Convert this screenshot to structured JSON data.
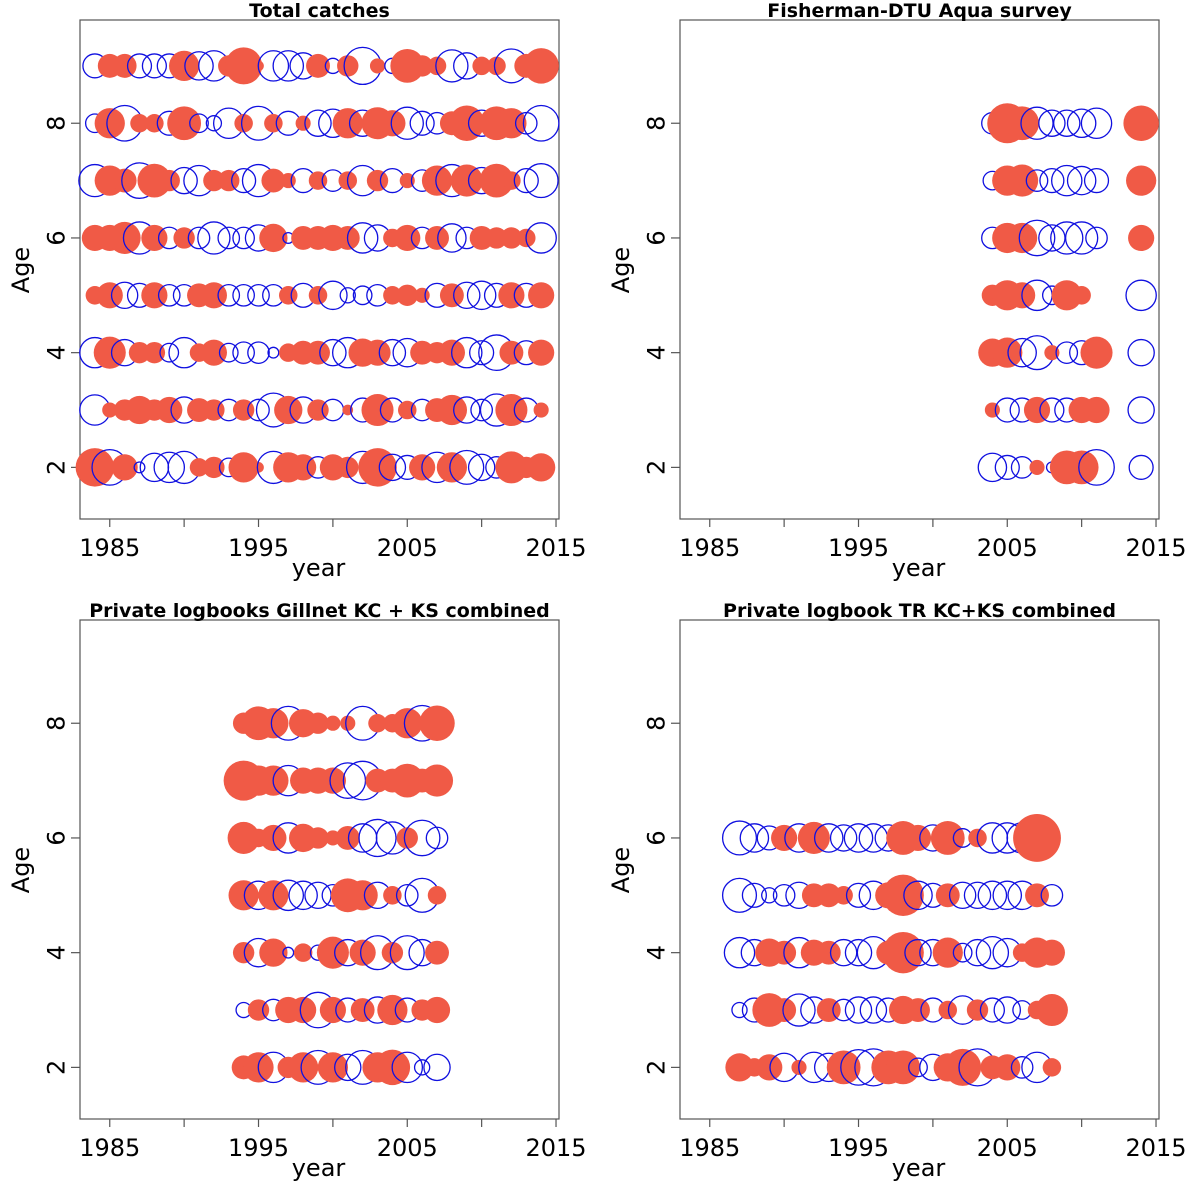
{
  "colors": {
    "positive_fill": "#f05a46",
    "negative_stroke": "#1010e0",
    "frame": "#555555"
  },
  "chart_data": [
    {
      "type": "scatter",
      "subtype": "bubble-residuals",
      "title": "Total catches",
      "xlabel": "year",
      "ylabel": "Age",
      "xlim": [
        1983,
        2015.2
      ],
      "ylim": [
        1.1,
        9.8
      ],
      "xticks": [
        1985,
        1995,
        2005,
        2015
      ],
      "yticks": [
        2,
        4,
        6,
        8
      ],
      "years": [
        1984,
        1985,
        1986,
        1987,
        1988,
        1989,
        1990,
        1991,
        1992,
        1993,
        1994,
        1995,
        1996,
        1997,
        1998,
        1999,
        2000,
        2001,
        2002,
        2003,
        2004,
        2005,
        2006,
        2007,
        2008,
        2009,
        2010,
        2011,
        2012,
        2013,
        2014
      ],
      "rows": [
        {
          "age": 9,
          "res": [
            -0.5,
            0.5,
            0.5,
            -0.5,
            -0.5,
            -0.5,
            0.8,
            -0.7,
            -0.8,
            0.4,
            1.2,
            0.1,
            -0.8,
            -0.8,
            -0.6,
            0.5,
            -0.2,
            0.4,
            -1.2,
            0.2,
            -0.2,
            1.0,
            0.4,
            0.3,
            -0.9,
            -0.6,
            0.3,
            0.3,
            -1.0,
            0.5,
            1.1
          ]
        },
        {
          "age": 8,
          "res": [
            -0.3,
            0.8,
            -1.1,
            0.3,
            0.3,
            -0.5,
            1.0,
            -0.3,
            -0.2,
            -0.8,
            0.3,
            -1.0,
            0.3,
            -0.5,
            0.2,
            -0.6,
            -0.7,
            0.8,
            -0.6,
            0.9,
            0.6,
            -0.9,
            -0.5,
            -0.4,
            0.5,
            1.1,
            -0.6,
            1.0,
            0.8,
            -0.4,
            -1.1
          ]
        },
        {
          "age": 7,
          "res": [
            -0.9,
            0.8,
            0.5,
            -1.1,
            1.0,
            0.4,
            -0.6,
            -0.8,
            0.4,
            0.4,
            -0.5,
            -0.9,
            0.5,
            0.2,
            -0.5,
            0.3,
            -0.4,
            0.3,
            -0.8,
            0.4,
            -0.5,
            0.2,
            -0.4,
            0.8,
            -0.9,
            0.9,
            -0.6,
            1.0,
            0.3,
            -0.5,
            -1.0
          ]
        },
        {
          "age": 6,
          "res": [
            0.6,
            0.6,
            0.9,
            -0.9,
            0.6,
            -0.4,
            0.4,
            -0.4,
            -0.9,
            -0.4,
            -0.4,
            -0.6,
            0.7,
            -0.1,
            0.5,
            0.5,
            0.6,
            0.5,
            -0.8,
            -0.6,
            0.3,
            0.6,
            -0.4,
            0.5,
            -0.7,
            -0.4,
            0.5,
            0.4,
            0.4,
            0.3,
            -0.8
          ]
        },
        {
          "age": 5,
          "res": [
            0.3,
            0.6,
            -0.6,
            -0.5,
            0.6,
            -0.4,
            -0.4,
            0.5,
            0.6,
            -0.4,
            -0.4,
            -0.4,
            -0.4,
            0.3,
            -0.5,
            0.3,
            -0.7,
            -0.2,
            -0.3,
            -0.4,
            0.3,
            0.4,
            0.2,
            -0.5,
            0.5,
            -0.6,
            -0.7,
            -0.5,
            0.6,
            -0.5,
            0.6
          ]
        },
        {
          "age": 4,
          "res": [
            -0.8,
            0.9,
            -0.6,
            0.4,
            0.4,
            -0.3,
            -0.8,
            0.3,
            0.6,
            -0.3,
            -0.4,
            -0.4,
            -0.1,
            0.3,
            0.5,
            0.5,
            -0.6,
            -0.8,
            0.7,
            0.6,
            -0.6,
            -0.7,
            0.5,
            0.4,
            0.6,
            -0.8,
            -0.5,
            -1.1,
            0.5,
            -0.5,
            0.6
          ]
        },
        {
          "age": 3,
          "res": [
            -0.8,
            0.2,
            0.4,
            0.7,
            0.4,
            0.6,
            -0.6,
            0.5,
            0.4,
            -0.4,
            0.4,
            -0.4,
            -1.0,
            0.7,
            -0.6,
            0.4,
            -0.4,
            0.1,
            -0.5,
            0.9,
            -0.5,
            0.3,
            -0.4,
            0.5,
            0.8,
            -0.6,
            -0.4,
            -0.9,
            0.9,
            -0.5,
            0.2
          ]
        },
        {
          "age": 2,
          "res": [
            1.3,
            -1.1,
            0.6,
            -0.1,
            -0.7,
            -0.8,
            -0.9,
            0.3,
            0.4,
            -0.3,
            0.8,
            0.1,
            -0.9,
            0.8,
            0.6,
            -0.4,
            0.6,
            0.4,
            -0.9,
            1.3,
            -0.6,
            -0.5,
            0.6,
            -0.8,
            0.8,
            -1.0,
            -0.6,
            -0.4,
            0.9,
            0.4,
            0.7
          ]
        }
      ]
    },
    {
      "type": "scatter",
      "subtype": "bubble-residuals",
      "title": "Fisherman-DTU Aqua survey",
      "xlabel": "year",
      "ylabel": "Age",
      "xlim": [
        1983,
        2015.2
      ],
      "ylim": [
        1.1,
        9.8
      ],
      "xticks": [
        1985,
        1995,
        2005,
        2015
      ],
      "yticks": [
        2,
        4,
        6,
        8
      ],
      "years": [
        2004,
        2005,
        2006,
        2007,
        2008,
        2009,
        2010,
        2011,
        2014
      ],
      "rows": [
        {
          "age": 8,
          "res": [
            -0.4,
            1.4,
            1.0,
            -0.9,
            -0.6,
            -0.6,
            -0.7,
            -0.8,
            1.1
          ]
        },
        {
          "age": 7,
          "res": [
            -0.3,
            0.8,
            0.9,
            -0.4,
            -0.5,
            -0.8,
            -0.7,
            -0.5,
            0.8
          ]
        },
        {
          "age": 6,
          "res": [
            -0.4,
            0.8,
            0.8,
            -1.1,
            -0.6,
            -0.9,
            -0.9,
            -0.4,
            0.6
          ]
        },
        {
          "age": 5,
          "res": [
            0.4,
            0.8,
            0.6,
            -0.8,
            -0.3,
            0.8,
            0.3,
            0.0,
            -0.8
          ]
        },
        {
          "age": 4,
          "res": [
            0.7,
            0.8,
            -0.7,
            -1.0,
            0.2,
            -0.4,
            -0.5,
            0.9,
            -0.6
          ]
        },
        {
          "age": 3,
          "res": [
            0.2,
            -0.5,
            -0.5,
            0.6,
            -0.5,
            -0.5,
            0.6,
            0.6,
            -0.6
          ]
        },
        {
          "age": 2,
          "res": [
            -0.7,
            -0.5,
            -0.4,
            0.2,
            -0.1,
            1.0,
            1.0,
            -1.1,
            -0.5
          ]
        }
      ]
    },
    {
      "type": "scatter",
      "subtype": "bubble-residuals",
      "title": "Private logbooks Gillnet KC + KS combined",
      "xlabel": "year",
      "ylabel": "Age",
      "xlim": [
        1983,
        2015.2
      ],
      "ylim": [
        1.1,
        9.8
      ],
      "xticks": [
        1985,
        1995,
        2005,
        2015
      ],
      "yticks": [
        2,
        4,
        6,
        8
      ],
      "years": [
        1994,
        1995,
        1996,
        1997,
        1998,
        1999,
        2000,
        2001,
        2002,
        2003,
        2004,
        2005,
        2006,
        2007
      ],
      "rows": [
        {
          "age": 8,
          "res": [
            0.4,
            1.0,
            0.8,
            -1.0,
            0.7,
            0.4,
            0.2,
            0.2,
            -1.0,
            0.3,
            0.3,
            0.8,
            -1.1,
            1.1
          ]
        },
        {
          "age": 7,
          "res": [
            1.4,
            0.8,
            0.8,
            -0.8,
            0.6,
            0.6,
            0.6,
            -1.1,
            -1.3,
            0.5,
            0.5,
            1.0,
            0.5,
            0.9
          ]
        },
        {
          "age": 6,
          "res": [
            0.9,
            0.3,
            0.6,
            -0.8,
            0.7,
            0.4,
            0.2,
            0.5,
            -0.7,
            -1.2,
            -0.9,
            0.4,
            -1.1,
            -0.4
          ]
        },
        {
          "age": 5,
          "res": [
            0.8,
            -0.7,
            0.8,
            -0.8,
            -0.7,
            -0.6,
            -0.4,
            1.0,
            0.8,
            -0.6,
            0.3,
            -0.4,
            -1.0,
            0.3
          ]
        },
        {
          "age": 4,
          "res": [
            0.4,
            -0.7,
            0.7,
            -0.1,
            0.3,
            -0.2,
            0.9,
            -0.6,
            0.6,
            -1.0,
            0.4,
            -1.0,
            -0.6,
            0.5
          ]
        },
        {
          "age": 3,
          "res": [
            -0.2,
            0.4,
            -0.4,
            0.6,
            0.6,
            -1.1,
            0.6,
            -0.5,
            0.5,
            -0.6,
            0.8,
            -0.5,
            0.4,
            0.6
          ]
        },
        {
          "age": 2,
          "res": [
            0.5,
            0.8,
            -0.8,
            0.4,
            0.8,
            -1.0,
            0.8,
            -0.6,
            -1.0,
            0.8,
            1.1,
            -0.8,
            -0.2,
            -0.6
          ]
        }
      ]
    },
    {
      "type": "scatter",
      "subtype": "bubble-residuals",
      "title": "Private logbook TR KC+KS combined",
      "xlabel": "year",
      "ylabel": "Age",
      "xlim": [
        1983,
        2015.2
      ],
      "ylim": [
        1.1,
        9.8
      ],
      "xticks": [
        1985,
        1995,
        2005,
        2015
      ],
      "yticks": [
        2,
        4,
        6,
        8
      ],
      "years": [
        1987,
        1988,
        1989,
        1990,
        1991,
        1992,
        1993,
        1994,
        1995,
        1996,
        1997,
        1998,
        1999,
        2000,
        2001,
        2002,
        2003,
        2004,
        2005,
        2006,
        2007,
        2008
      ],
      "rows": [
        {
          "age": 6,
          "res": [
            -1.0,
            -0.7,
            -0.5,
            0.6,
            -0.7,
            0.9,
            -0.7,
            -0.6,
            -0.7,
            -0.7,
            -0.6,
            1.0,
            0.6,
            -0.6,
            1.0,
            -0.3,
            0.3,
            -0.8,
            -0.8,
            -0.8,
            2.0,
            0.0
          ]
        },
        {
          "age": 5,
          "res": [
            -1.0,
            -0.5,
            -0.2,
            -0.4,
            -0.6,
            0.5,
            0.5,
            0.3,
            -0.5,
            -0.7,
            0.6,
            1.5,
            -0.7,
            -0.5,
            0.5,
            -0.6,
            -0.6,
            -0.7,
            -0.7,
            -0.7,
            0.5,
            -0.4
          ]
        },
        {
          "age": 4,
          "res": [
            -0.8,
            -0.6,
            0.7,
            0.5,
            -0.8,
            0.6,
            0.5,
            -0.6,
            -0.6,
            -0.9,
            0.5,
            1.5,
            -0.6,
            -0.6,
            0.8,
            -0.3,
            -0.6,
            -0.9,
            -0.7,
            0.3,
            0.8,
            0.6
          ]
        },
        {
          "age": 3,
          "res": [
            -0.2,
            -0.5,
            1.0,
            0.5,
            -0.9,
            -0.6,
            0.5,
            -0.4,
            -0.6,
            -0.6,
            -0.5,
            0.7,
            0.5,
            -0.5,
            0.3,
            -0.7,
            0.4,
            -0.5,
            -0.6,
            -0.3,
            0.3,
            0.9
          ]
        },
        {
          "age": 2,
          "res": [
            0.7,
            0.3,
            0.6,
            -0.7,
            0.2,
            -0.8,
            -0.7,
            1.0,
            -1.1,
            -1.2,
            1.0,
            1.0,
            -0.3,
            -0.6,
            0.7,
            1.2,
            -1.2,
            0.5,
            0.6,
            -0.4,
            -0.8,
            0.3
          ]
        }
      ]
    }
  ]
}
